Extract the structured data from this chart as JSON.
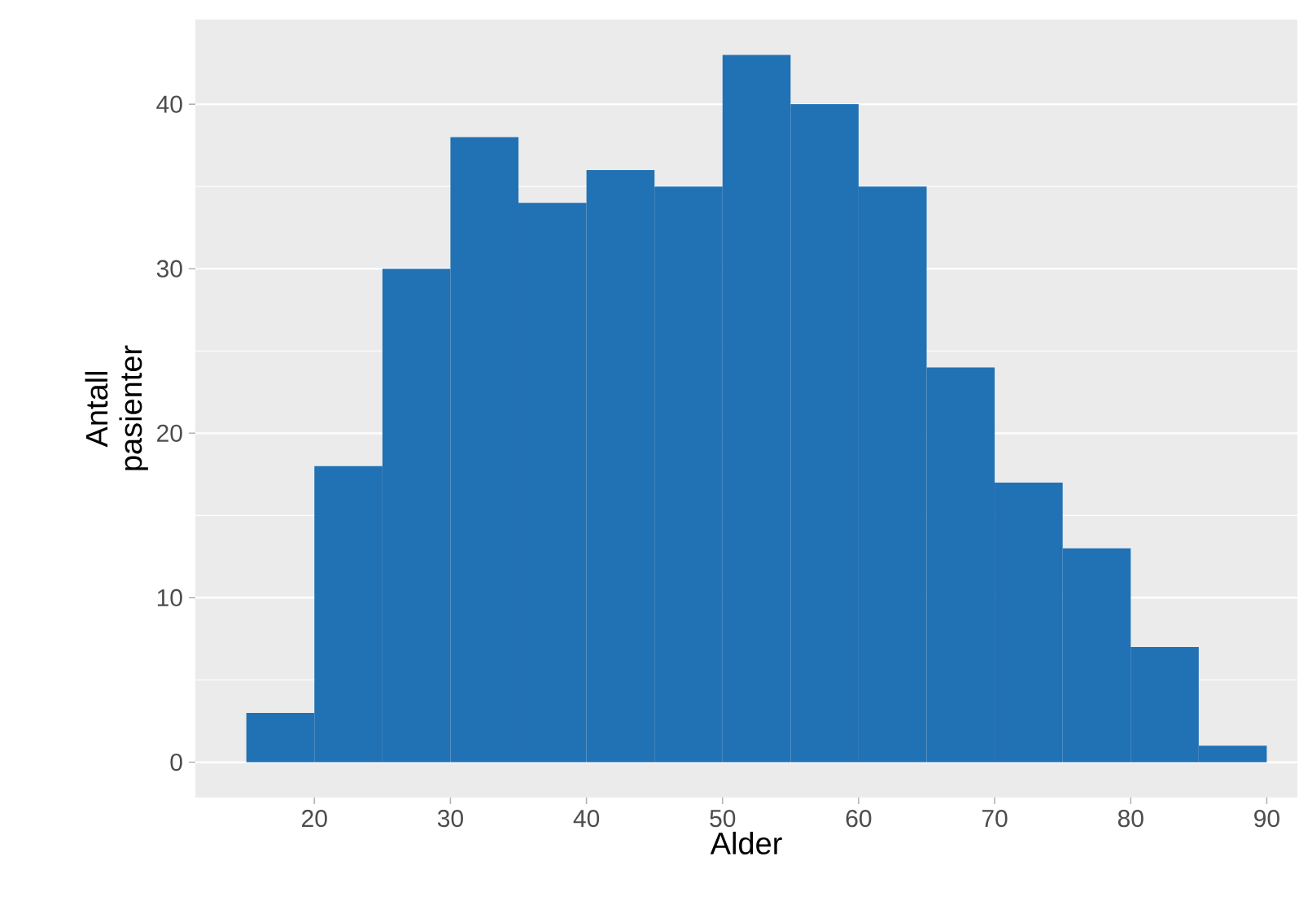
{
  "chart_data": {
    "type": "histogram",
    "xlabel": "Alder",
    "ylabel": "Antall pasienter",
    "bins": [
      15,
      20,
      25,
      30,
      35,
      40,
      45,
      50,
      55,
      60,
      65,
      70,
      75,
      80,
      85,
      90
    ],
    "values": [
      3,
      18,
      30,
      38,
      34,
      36,
      35,
      43,
      40,
      35,
      24,
      17,
      13,
      7,
      1
    ],
    "color": "#2171b5",
    "xlim": [
      11.25,
      92.25
    ],
    "ylim": [
      -2.15,
      45.15
    ],
    "xticks": [
      20,
      30,
      40,
      50,
      60,
      70,
      80,
      90
    ],
    "yticks": [
      0,
      10,
      20,
      30,
      40
    ],
    "grid": "y"
  }
}
